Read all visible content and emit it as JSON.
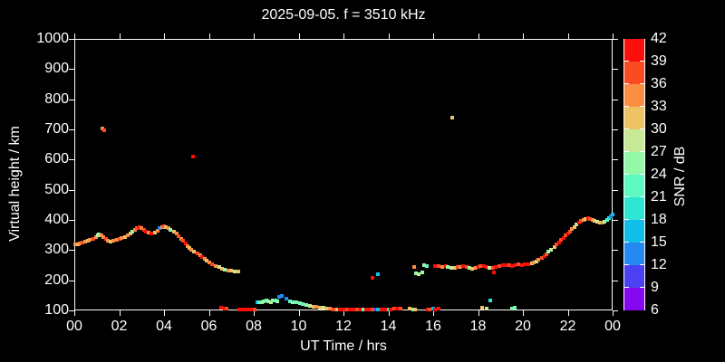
{
  "title": "2025-09-05. f = 3510 kHz",
  "chart_data": {
    "type": "scatter",
    "title": "2025-09-05. f = 3510 kHz",
    "xlabel": "UT Time / hrs",
    "ylabel": "Virtual height / km",
    "xlim": [
      0,
      24
    ],
    "ylim": [
      100,
      1000
    ],
    "grid": false,
    "background": "#000000",
    "x_tick_values": [
      0,
      2,
      4,
      6,
      8,
      10,
      12,
      14,
      16,
      18,
      20,
      22,
      24
    ],
    "x_tick_labels": [
      "00",
      "02",
      "04",
      "06",
      "08",
      "10",
      "12",
      "14",
      "16",
      "18",
      "20",
      "22",
      "00"
    ],
    "y_tick_values": [
      100,
      200,
      300,
      400,
      500,
      600,
      700,
      800,
      900,
      1000
    ],
    "y_tick_labels": [
      "100",
      "200",
      "300",
      "400",
      "500",
      "600",
      "700",
      "800",
      "900",
      "1000"
    ],
    "colorbar": {
      "label": "SNR / dB",
      "tick_values": [
        6,
        9,
        12,
        15,
        18,
        21,
        24,
        27,
        30,
        33,
        36,
        39,
        42
      ],
      "tick_labels": [
        "6",
        "9",
        "12",
        "15",
        "18",
        "21",
        "24",
        "27",
        "30",
        "33",
        "36",
        "39",
        "42"
      ],
      "bin_min": 6,
      "bin_max": 42,
      "bin_step": 3,
      "colors_bottom_to_top": [
        "#8607f0",
        "#4b40f2",
        "#2689f2",
        "#10bfe9",
        "#2ee6d4",
        "#5ff9c2",
        "#92f9a9",
        "#c8ea96",
        "#f0c266",
        "#fc8e44",
        "#fb4b22",
        "#fa0f0a"
      ]
    },
    "series_name": "echo points [UT hrs, virtual height km, SNR dB]",
    "points": [
      [
        0.05,
        318,
        34
      ],
      [
        0.15,
        320,
        31
      ],
      [
        0.25,
        322,
        34
      ],
      [
        0.35,
        325,
        37
      ],
      [
        0.5,
        328,
        34
      ],
      [
        0.6,
        332,
        31
      ],
      [
        0.7,
        335,
        34
      ],
      [
        0.85,
        338,
        37
      ],
      [
        0.95,
        342,
        34
      ],
      [
        1.05,
        348,
        28
      ],
      [
        1.1,
        352,
        25
      ],
      [
        1.2,
        350,
        34
      ],
      [
        1.3,
        342,
        34
      ],
      [
        1.4,
        336,
        37
      ],
      [
        1.5,
        331,
        34
      ],
      [
        1.6,
        328,
        31
      ],
      [
        1.75,
        330,
        34
      ],
      [
        1.9,
        333,
        34
      ],
      [
        2.0,
        336,
        37
      ],
      [
        2.1,
        340,
        34
      ],
      [
        2.25,
        344,
        31
      ],
      [
        2.4,
        350,
        34
      ],
      [
        2.5,
        356,
        31
      ],
      [
        2.6,
        362,
        25
      ],
      [
        2.7,
        368,
        34
      ],
      [
        2.8,
        372,
        37
      ],
      [
        2.9,
        375,
        40
      ],
      [
        3.0,
        372,
        34
      ],
      [
        3.1,
        368,
        37
      ],
      [
        3.2,
        362,
        40
      ],
      [
        3.3,
        358,
        34
      ],
      [
        3.45,
        356,
        40
      ],
      [
        3.6,
        358,
        31
      ],
      [
        3.7,
        364,
        34
      ],
      [
        3.8,
        372,
        13
      ],
      [
        3.9,
        376,
        34
      ],
      [
        4.0,
        378,
        37
      ],
      [
        4.1,
        375,
        31
      ],
      [
        4.2,
        372,
        34
      ],
      [
        4.3,
        368,
        25
      ],
      [
        4.45,
        362,
        31
      ],
      [
        4.55,
        354,
        34
      ],
      [
        4.65,
        346,
        37
      ],
      [
        4.75,
        338,
        34
      ],
      [
        4.85,
        330,
        37
      ],
      [
        4.95,
        322,
        40
      ],
      [
        5.05,
        314,
        34
      ],
      [
        5.15,
        306,
        31
      ],
      [
        5.2,
        300,
        34
      ],
      [
        5.35,
        294,
        31
      ],
      [
        5.5,
        288,
        37
      ],
      [
        5.6,
        282,
        34
      ],
      [
        5.7,
        276,
        40
      ],
      [
        5.8,
        270,
        34
      ],
      [
        5.9,
        264,
        31
      ],
      [
        6.0,
        258,
        34
      ],
      [
        6.15,
        252,
        37
      ],
      [
        6.3,
        248,
        34
      ],
      [
        6.45,
        243,
        28
      ],
      [
        6.6,
        239,
        31
      ],
      [
        6.7,
        236,
        25
      ],
      [
        6.85,
        233,
        34
      ],
      [
        7.0,
        231,
        31
      ],
      [
        7.15,
        230,
        28
      ],
      [
        7.3,
        228,
        31
      ],
      [
        1.25,
        702,
        34
      ],
      [
        1.32,
        696,
        37
      ],
      [
        5.3,
        610,
        40
      ],
      [
        16.85,
        740,
        31
      ],
      [
        6.55,
        110,
        40
      ],
      [
        6.7,
        107,
        40
      ],
      [
        6.8,
        105,
        37
      ],
      [
        7.35,
        103,
        40
      ],
      [
        7.45,
        102,
        40
      ],
      [
        7.55,
        103,
        40
      ],
      [
        7.65,
        102,
        40
      ],
      [
        7.75,
        103,
        40
      ],
      [
        7.85,
        102,
        40
      ],
      [
        7.95,
        103,
        40
      ],
      [
        8.05,
        102,
        37
      ],
      [
        8.15,
        128,
        16
      ],
      [
        8.25,
        126,
        22
      ],
      [
        8.35,
        128,
        25
      ],
      [
        8.45,
        130,
        25
      ],
      [
        8.55,
        132,
        22
      ],
      [
        8.65,
        130,
        25
      ],
      [
        8.75,
        128,
        28
      ],
      [
        8.85,
        132,
        25
      ],
      [
        8.95,
        134,
        22
      ],
      [
        9.05,
        131,
        25
      ],
      [
        9.15,
        146,
        13
      ],
      [
        9.25,
        149,
        13
      ],
      [
        9.45,
        140,
        13
      ],
      [
        9.6,
        131,
        22
      ],
      [
        9.75,
        128,
        25
      ],
      [
        9.9,
        126,
        22
      ],
      [
        10.05,
        123,
        25
      ],
      [
        10.2,
        121,
        22
      ],
      [
        10.35,
        118,
        25
      ],
      [
        10.5,
        115,
        28
      ],
      [
        10.65,
        113,
        31
      ],
      [
        10.8,
        111,
        34
      ],
      [
        10.95,
        110,
        31
      ],
      [
        11.1,
        108,
        28
      ],
      [
        11.25,
        107,
        31
      ],
      [
        11.4,
        105,
        34
      ],
      [
        11.55,
        104,
        37
      ],
      [
        11.7,
        103,
        31
      ],
      [
        11.85,
        103,
        40
      ],
      [
        12.0,
        102,
        40
      ],
      [
        12.15,
        103,
        37
      ],
      [
        12.3,
        102,
        40
      ],
      [
        12.45,
        103,
        40
      ],
      [
        12.6,
        102,
        37
      ],
      [
        12.75,
        103,
        40
      ],
      [
        12.9,
        104,
        22
      ],
      [
        13.0,
        102,
        40
      ],
      [
        13.15,
        103,
        40
      ],
      [
        13.3,
        102,
        37
      ],
      [
        13.45,
        103,
        10
      ],
      [
        13.55,
        102,
        16
      ],
      [
        13.7,
        103,
        40
      ],
      [
        13.85,
        102,
        40
      ],
      [
        14.0,
        103,
        19
      ],
      [
        14.1,
        104,
        40
      ],
      [
        14.25,
        105,
        37
      ],
      [
        14.4,
        106,
        40
      ],
      [
        14.55,
        106,
        37
      ],
      [
        14.95,
        105,
        31
      ],
      [
        15.1,
        103,
        25
      ],
      [
        15.2,
        104,
        31
      ],
      [
        15.75,
        104,
        40
      ],
      [
        15.85,
        103,
        37
      ],
      [
        16.0,
        105,
        16
      ],
      [
        16.1,
        104,
        40
      ],
      [
        16.25,
        106,
        40
      ],
      [
        18.2,
        110,
        31
      ],
      [
        18.4,
        107,
        28
      ],
      [
        18.55,
        132,
        19
      ],
      [
        19.5,
        107,
        25
      ],
      [
        19.65,
        109,
        22
      ],
      [
        13.3,
        208,
        40
      ],
      [
        13.55,
        221,
        16
      ],
      [
        15.15,
        243,
        34
      ],
      [
        15.25,
        224,
        25
      ],
      [
        15.35,
        220,
        28
      ],
      [
        15.5,
        227,
        25
      ],
      [
        15.6,
        251,
        25
      ],
      [
        15.7,
        248,
        22
      ],
      [
        16.1,
        246,
        40
      ],
      [
        16.25,
        248,
        37
      ],
      [
        16.4,
        245,
        34
      ],
      [
        16.55,
        247,
        40
      ],
      [
        16.65,
        243,
        25
      ],
      [
        16.8,
        241,
        28
      ],
      [
        16.95,
        240,
        31
      ],
      [
        17.1,
        243,
        37
      ],
      [
        17.2,
        245,
        34
      ],
      [
        17.35,
        247,
        40
      ],
      [
        17.5,
        244,
        37
      ],
      [
        17.6,
        241,
        25
      ],
      [
        17.75,
        239,
        31
      ],
      [
        17.9,
        241,
        34
      ],
      [
        18.0,
        243,
        40
      ],
      [
        18.1,
        246,
        37
      ],
      [
        18.25,
        248,
        40
      ],
      [
        18.4,
        245,
        40
      ],
      [
        18.5,
        242,
        28
      ],
      [
        18.65,
        241,
        37
      ],
      [
        18.7,
        226,
        40
      ],
      [
        18.8,
        243,
        40
      ],
      [
        18.95,
        246,
        37
      ],
      [
        19.1,
        249,
        40
      ],
      [
        19.25,
        251,
        40
      ],
      [
        19.4,
        250,
        37
      ],
      [
        19.5,
        248,
        40
      ],
      [
        19.65,
        250,
        40
      ],
      [
        19.8,
        252,
        37
      ],
      [
        19.95,
        251,
        40
      ],
      [
        20.1,
        252,
        40
      ],
      [
        20.25,
        253,
        40
      ],
      [
        20.4,
        255,
        31
      ],
      [
        20.5,
        258,
        34
      ],
      [
        20.6,
        262,
        28
      ],
      [
        20.7,
        267,
        34
      ],
      [
        20.85,
        273,
        37
      ],
      [
        20.95,
        280,
        40
      ],
      [
        21.05,
        287,
        37
      ],
      [
        21.15,
        294,
        25
      ],
      [
        21.25,
        301,
        28
      ],
      [
        21.4,
        309,
        31
      ],
      [
        21.5,
        318,
        37
      ],
      [
        21.6,
        326,
        40
      ],
      [
        21.7,
        334,
        37
      ],
      [
        21.8,
        341,
        40
      ],
      [
        21.9,
        348,
        37
      ],
      [
        22.0,
        355,
        40
      ],
      [
        22.1,
        362,
        37
      ],
      [
        22.2,
        369,
        34
      ],
      [
        22.3,
        376,
        31
      ],
      [
        22.4,
        384,
        28
      ],
      [
        22.5,
        391,
        40
      ],
      [
        22.6,
        397,
        37
      ],
      [
        22.7,
        401,
        34
      ],
      [
        22.8,
        404,
        31
      ],
      [
        22.9,
        407,
        40
      ],
      [
        23.0,
        404,
        37
      ],
      [
        23.1,
        400,
        34
      ],
      [
        23.2,
        396,
        31
      ],
      [
        23.3,
        393,
        28
      ],
      [
        23.45,
        391,
        31
      ],
      [
        23.55,
        392,
        34
      ],
      [
        23.65,
        395,
        25
      ],
      [
        23.75,
        399,
        22
      ],
      [
        23.85,
        405,
        19
      ],
      [
        23.92,
        412,
        13
      ],
      [
        23.98,
        419,
        16
      ]
    ]
  }
}
